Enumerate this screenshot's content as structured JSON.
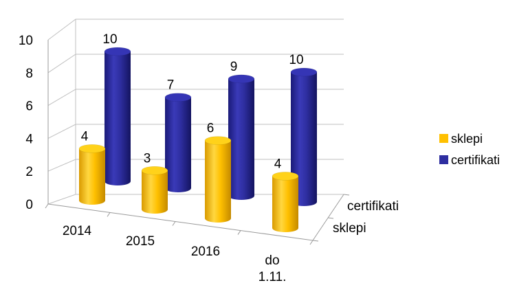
{
  "chart_data": {
    "type": "bar",
    "style": "3d-cylinder",
    "categories": [
      "2014",
      "2015",
      "2016",
      "do 1.11."
    ],
    "series": [
      {
        "name": "sklepi",
        "values": [
          4,
          3,
          6,
          4
        ],
        "color": "#FFC000"
      },
      {
        "name": "certifikati",
        "values": [
          10,
          7,
          9,
          10
        ],
        "color": "#2E2EA0"
      }
    ],
    "depth_axis_labels": [
      "certifikati",
      "sklepi"
    ],
    "y_ticks": [
      "0",
      "2",
      "4",
      "6",
      "8",
      "10"
    ],
    "ylim": [
      0,
      10
    ],
    "grid": true,
    "legend_position": "right",
    "title": "",
    "xlabel": "",
    "ylabel": ""
  }
}
